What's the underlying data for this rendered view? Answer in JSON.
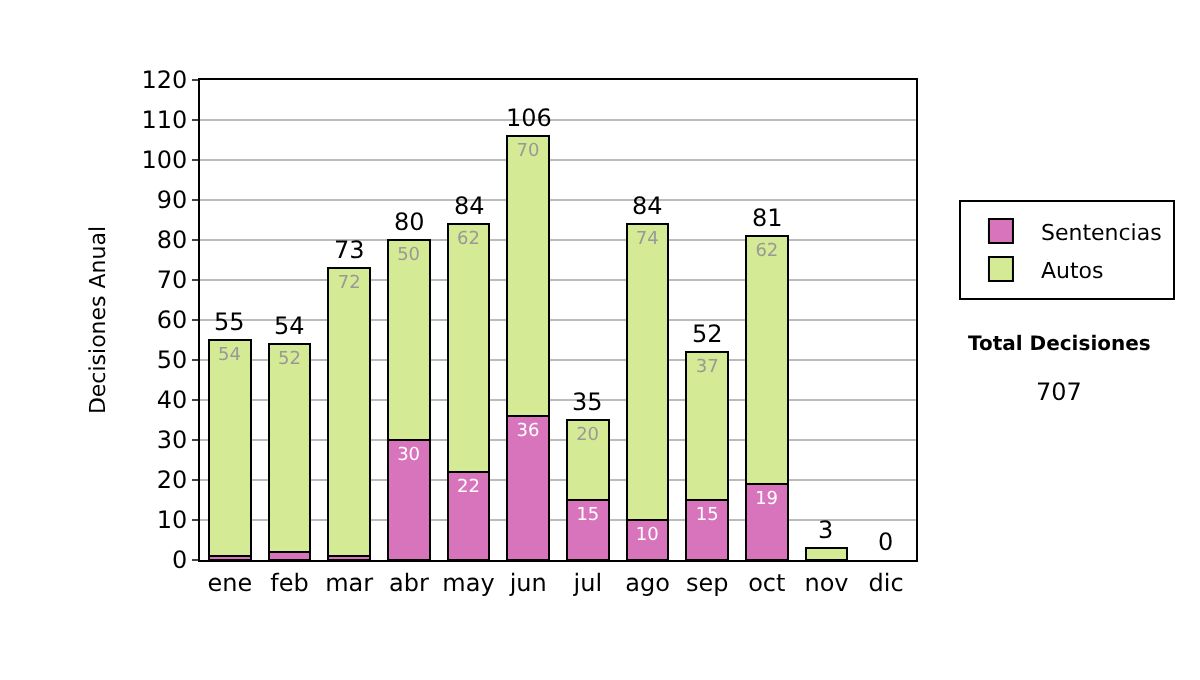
{
  "chart_data": {
    "type": "bar",
    "stacked": true,
    "ylabel": "Decisiones Anual",
    "categories": [
      "ene",
      "feb",
      "mar",
      "abr",
      "may",
      "jun",
      "jul",
      "ago",
      "sep",
      "oct",
      "nov",
      "dic"
    ],
    "series": [
      {
        "name": "Sentencias",
        "color": "#d874bc",
        "values": [
          1,
          2,
          1,
          30,
          22,
          36,
          15,
          10,
          15,
          19,
          0,
          0
        ],
        "value_labels": [
          null,
          null,
          null,
          "30",
          "22",
          "36",
          "15",
          "10",
          "15",
          "19",
          null,
          null
        ]
      },
      {
        "name": "Autos",
        "color": "#d4ea94",
        "values": [
          54,
          52,
          72,
          50,
          62,
          70,
          20,
          74,
          37,
          62,
          3,
          0
        ],
        "value_labels": [
          "54",
          "52",
          "72",
          "50",
          "62",
          "70",
          "20",
          "74",
          "37",
          "62",
          null,
          null
        ]
      }
    ],
    "totals": [
      "55",
      "54",
      "73",
      "80",
      "84",
      "106",
      "35",
      "84",
      "52",
      "81",
      "3",
      "0"
    ],
    "ylim": [
      0,
      120
    ],
    "yticks": [
      0,
      10,
      20,
      30,
      40,
      50,
      60,
      70,
      80,
      90,
      100,
      110,
      120
    ],
    "grid": "y",
    "legend": "right",
    "annotations": [
      "Total Decisiones",
      "707"
    ]
  }
}
